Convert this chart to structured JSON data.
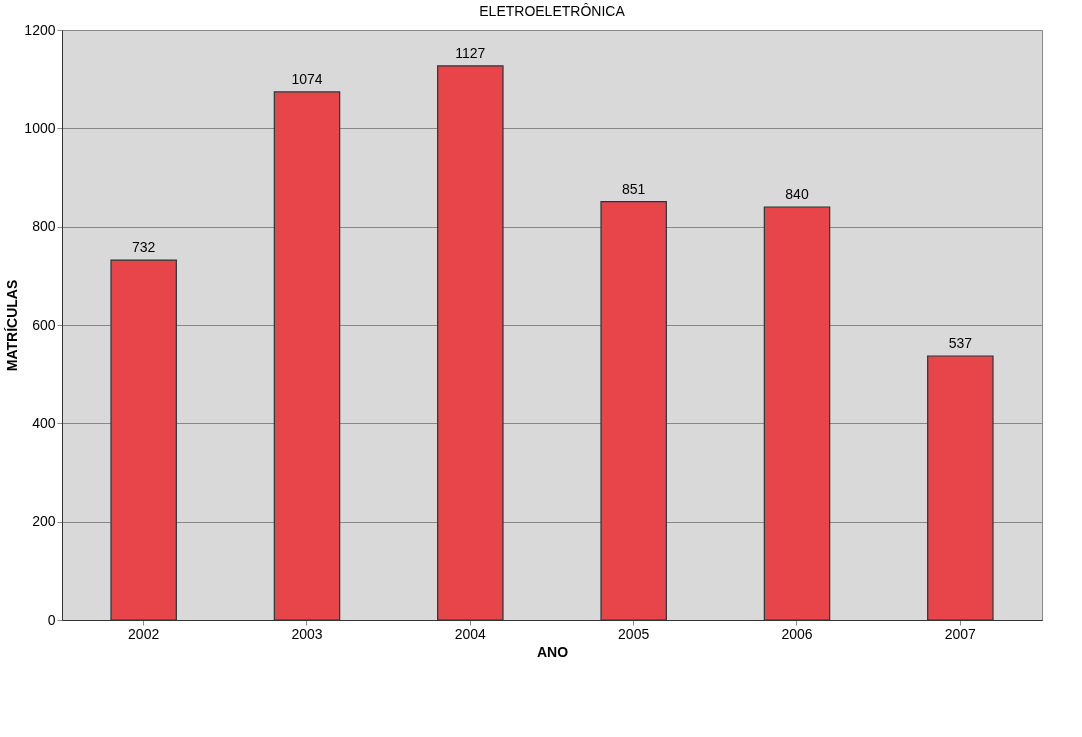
{
  "chart_data": {
    "type": "bar",
    "title": "ELETROELETRÔNICA",
    "xlabel": "ANO",
    "ylabel": "MATRÍCULAS",
    "categories": [
      "2002",
      "2003",
      "2004",
      "2005",
      "2006",
      "2007"
    ],
    "values": [
      732,
      1074,
      1127,
      851,
      840,
      537
    ],
    "color": "#e8454b",
    "ylim": [
      0,
      1200
    ],
    "yticks": [
      0,
      200,
      400,
      600,
      800,
      1000,
      1200
    ],
    "grid": "y",
    "data_labels": true
  }
}
